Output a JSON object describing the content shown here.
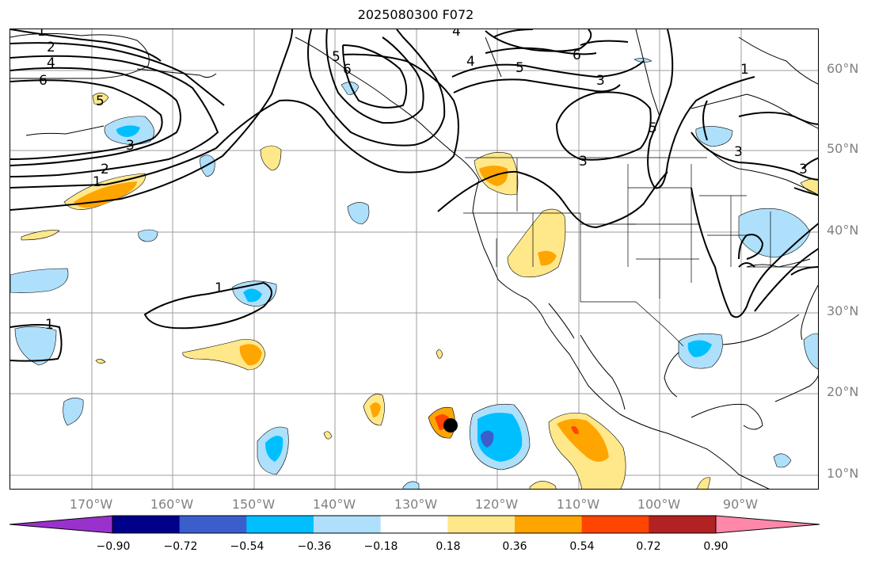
{
  "title": "2025080300 F072",
  "lat_labels": [
    "60°N",
    "50°N",
    "40°N",
    "30°N",
    "20°N",
    "10°N"
  ],
  "lon_labels": [
    "170°W",
    "160°W",
    "150°W",
    "140°W",
    "130°W",
    "120°W",
    "110°W",
    "100°W",
    "90°W"
  ],
  "colorbar": {
    "ticks": [
      "−0.90",
      "−0.72",
      "−0.54",
      "−0.36",
      "−0.18",
      "0.18",
      "0.36",
      "0.54",
      "0.72",
      "0.90"
    ],
    "colors": [
      "#9932cc",
      "#00008b",
      "#3a5fcd",
      "#00bfff",
      "#aee0fb",
      "#ffffff",
      "#ffe88a",
      "#ffa500",
      "#ff4500",
      "#b22222",
      "#ff88aa"
    ]
  },
  "contour_labels": [
    "1",
    "2",
    "4",
    "6",
    "5",
    "3",
    "1",
    "2",
    "1",
    "1",
    "4",
    "5",
    "6",
    "5",
    "4",
    "3",
    "6",
    "1",
    "3",
    "3",
    "5",
    "3"
  ],
  "marker": "storm-center-dot"
}
